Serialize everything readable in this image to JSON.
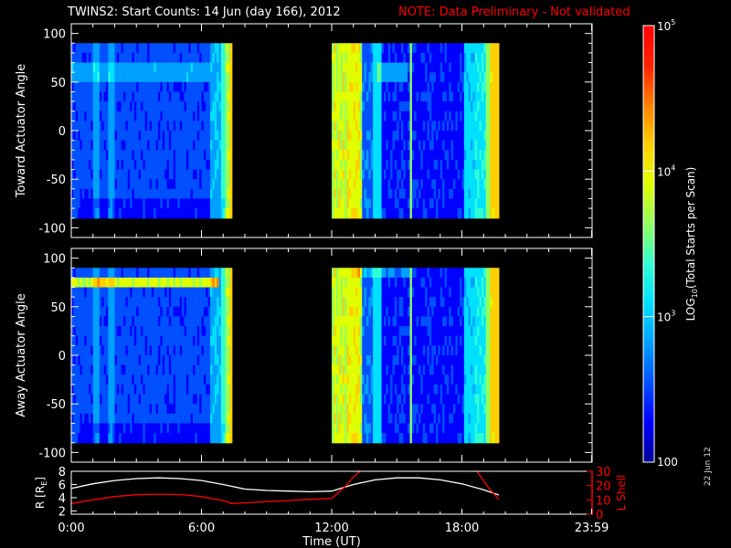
{
  "header": {
    "title": "TWINS2: Start Counts: 14 Jun (day 166), 2012",
    "note": "NOTE: Data Preliminary - Not validated",
    "note_color": "#ff0000"
  },
  "side_date": "22 Jun 12",
  "chart_data": [
    {
      "type": "heatmap",
      "name": "toward",
      "ylabel": "Toward Actuator Angle",
      "ylim": [
        -110,
        110
      ],
      "yticks": [
        "100",
        "50",
        "0",
        "-50",
        "-100"
      ],
      "ytick_values": [
        100,
        50,
        0,
        -50,
        -100
      ],
      "x_unit": "hours UT",
      "xlim": [
        0,
        24
      ],
      "angle_range": [
        -90,
        90
      ],
      "data_intervals_hours": [
        [
          0.0,
          7.4
        ],
        [
          12.0,
          19.7
        ]
      ]
    },
    {
      "type": "heatmap",
      "name": "away",
      "ylabel": "Away Actuator Angle",
      "ylim": [
        -110,
        110
      ],
      "yticks": [
        "100",
        "50",
        "0",
        "-50",
        "-100"
      ],
      "ytick_values": [
        100,
        50,
        0,
        -50,
        -100
      ],
      "x_unit": "hours UT",
      "xlim": [
        0,
        24
      ],
      "angle_range": [
        -90,
        90
      ],
      "data_intervals_hours": [
        [
          0.0,
          7.4
        ],
        [
          12.0,
          19.7
        ]
      ]
    },
    {
      "type": "line",
      "name": "orbit",
      "ylabel_left": "R [R",
      "ylabel_left_sub": "E",
      "ylabel_left_end": "]",
      "ylabel_right": "L Shell",
      "ylim_left": [
        1.5,
        8
      ],
      "yticks_left": [
        "8",
        "6",
        "4",
        "2"
      ],
      "ytick_left_values": [
        8,
        6,
        4,
        2
      ],
      "ylim_right": [
        0,
        30
      ],
      "yticks_right": [
        "30",
        "20",
        "10",
        "0"
      ],
      "ytick_right_values": [
        30,
        20,
        10,
        0
      ],
      "right_axis_color": "#ff0000",
      "series": [
        {
          "name": "R",
          "color": "#ffffff",
          "x": [
            0,
            1,
            2,
            3,
            4,
            5,
            6,
            7,
            8,
            9,
            10,
            11,
            12,
            13,
            14,
            15,
            16,
            17,
            18,
            19,
            19.7
          ],
          "y": [
            5.4,
            6.1,
            6.6,
            6.9,
            7.0,
            6.9,
            6.6,
            6.0,
            5.3,
            5.1,
            5.0,
            4.9,
            5.0,
            6.0,
            6.7,
            7.0,
            7.0,
            6.7,
            6.1,
            5.2,
            4.4
          ]
        },
        {
          "name": "L Shell",
          "color": "#ff0000",
          "x": [
            0,
            1,
            2,
            3,
            4,
            5,
            6,
            7,
            7.4,
            8,
            9,
            10,
            11,
            12,
            12.6,
            13.0,
            13.3
          ],
          "y": [
            7.5,
            10.0,
            12.3,
            13.6,
            14.0,
            13.7,
            12.3,
            9.5,
            7.5,
            8.0,
            8.8,
            9.6,
            10.4,
            11.0,
            19.0,
            26.0,
            30.0
          ]
        },
        {
          "name": "L Shell (b)",
          "color": "#ff0000",
          "x": [
            18.7,
            19.2,
            19.7
          ],
          "y": [
            30.0,
            19.0,
            10.2
          ]
        }
      ]
    }
  ],
  "xaxis": {
    "label": "Time (UT)",
    "ticks": [
      "0:00",
      "6:00",
      "12:00",
      "18:00",
      "23:59"
    ],
    "tick_values": [
      0,
      6,
      12,
      18,
      23.98
    ]
  },
  "colorbar": {
    "label": "LOG",
    "label_sub": "10",
    "label_tail": "(Total Starts per Scan)",
    "scale": "log",
    "range": [
      100,
      100000
    ],
    "tick_exponents": [
      5,
      4,
      3
    ],
    "bottom_label": "100",
    "mantissa": "10",
    "colors": [
      "#00009a",
      "#0000ff",
      "#0050ff",
      "#00a0ff",
      "#00e0ff",
      "#30ffd0",
      "#90ff60",
      "#e0ff00",
      "#ffd000",
      "#ff8000",
      "#ff2000",
      "#ff0000"
    ]
  }
}
